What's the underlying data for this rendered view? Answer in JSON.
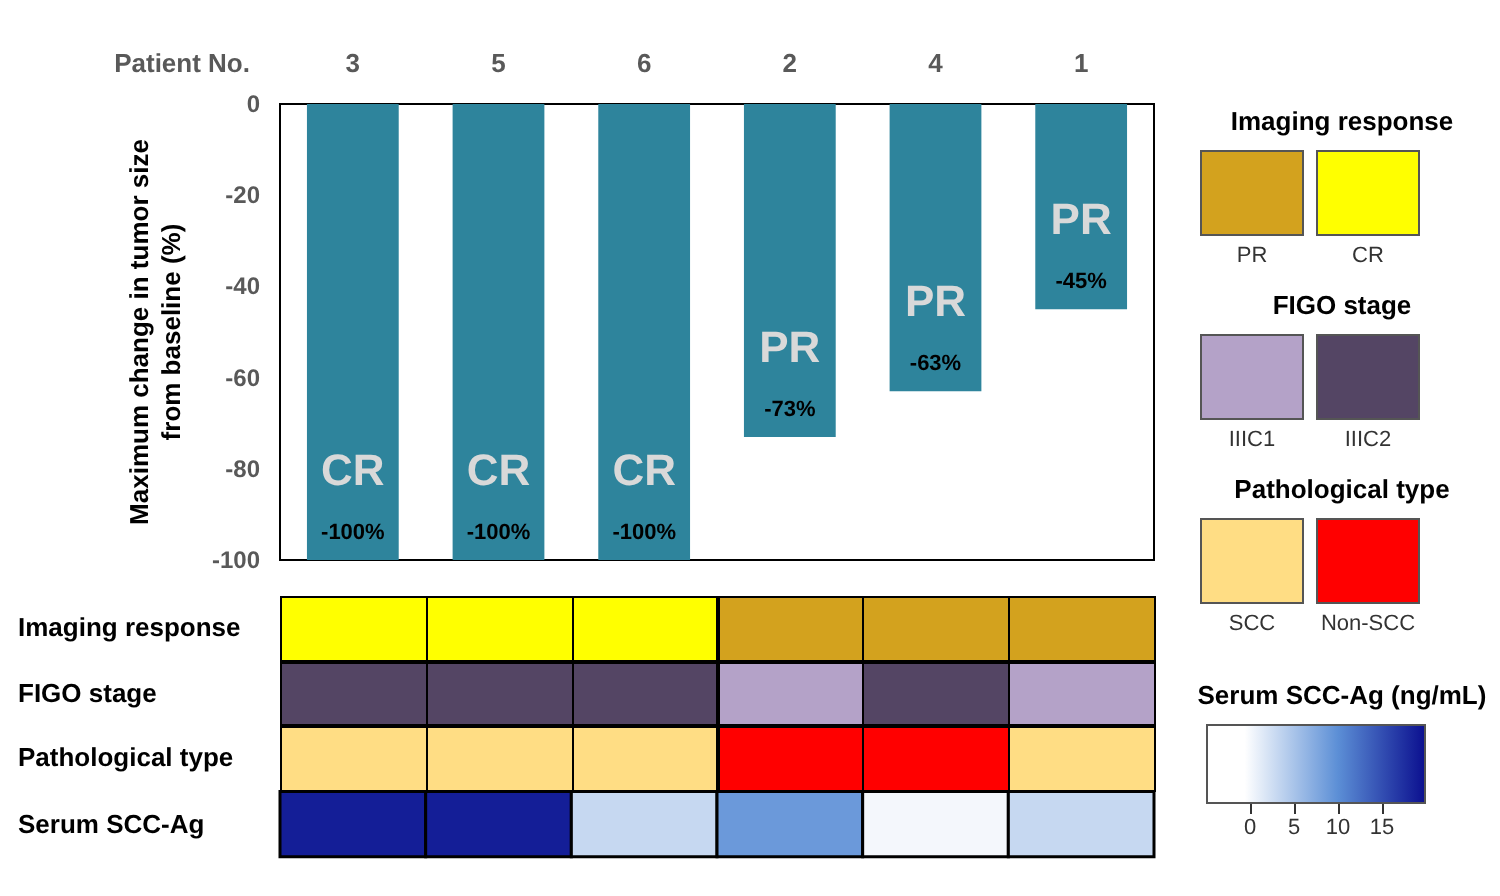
{
  "chart_data": [
    {
      "type": "bar",
      "xlabel": "Patient No.",
      "ylabel": "Maximum change in tumor size from baseline (%)",
      "categories": [
        "3",
        "5",
        "6",
        "2",
        "4",
        "1"
      ],
      "values": [
        -100,
        -100,
        -100,
        -73,
        -63,
        -45
      ],
      "color": "#2e849c",
      "value_labels": [
        "-100%",
        "-100%",
        "-100%",
        "-73%",
        "-63%",
        "-45%"
      ],
      "ylim": [
        -100,
        0
      ],
      "yticks": [
        0,
        -20,
        -40,
        -60,
        -80,
        -100
      ],
      "grid": false,
      "annotations": [
        "CR",
        "CR",
        "CR",
        "PR",
        "PR",
        "PR"
      ]
    },
    {
      "type": "other",
      "y_categories": [
        "Imaging response"
      ],
      "legend_title": "Imaging response",
      "colors": [
        "#ffff00",
        "#ffff00",
        "#ffff00",
        "#d3a21e",
        "#d3a21e",
        "#d3a21e"
      ],
      "annotations": [
        "PR",
        "CR"
      ]
    },
    {
      "type": "other",
      "y_categories": [
        "FIGO stage"
      ],
      "legend_title": "FIGO stage",
      "colors": [
        "#544564",
        "#544564",
        "#544564",
        "#b4a2c8",
        "#544564",
        "#b4a2c8"
      ],
      "annotations": [
        "IIIC1",
        "IIIC2"
      ]
    },
    {
      "type": "other",
      "y_categories": [
        "Pathological type"
      ],
      "legend_title": "Pathological type",
      "colors": [
        "#ffdd84",
        "#ffdd84",
        "#ffdd84",
        "#ff0000",
        "#ff0000",
        "#ffdd84"
      ],
      "annotations": [
        "SCC",
        "Non-SCC"
      ]
    },
    {
      "type": "heatmap",
      "categories": [
        null,
        null,
        null,
        null,
        null,
        null
      ],
      "y_categories": [
        "Serum SCC-Ag"
      ],
      "cells": [
        [
          19,
          19,
          3,
          9,
          0,
          3
        ]
      ],
      "clabel": "Serum SCC-Ag (ng/mL)",
      "clim": [
        -5,
        20
      ],
      "cticks": [
        0,
        5,
        10,
        15
      ]
    }
  ]
}
